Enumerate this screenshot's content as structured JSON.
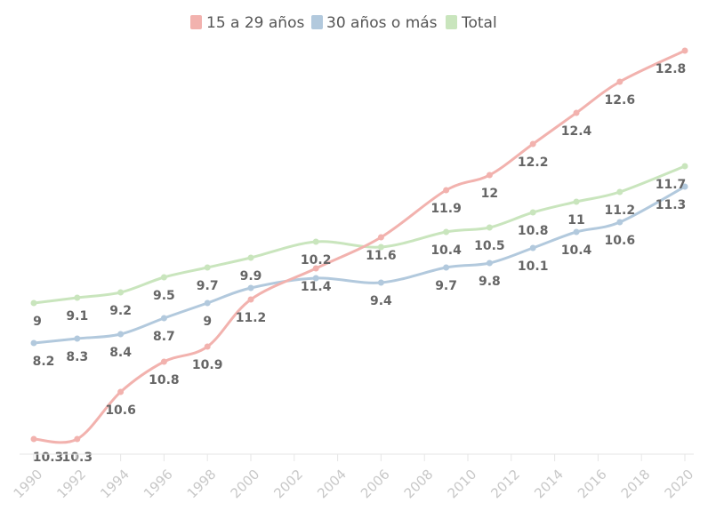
{
  "chart_data": {
    "type": "line",
    "title": "",
    "xlabel": "",
    "ylabel": "",
    "x_tick_labels": [
      "1990",
      "1992",
      "1994",
      "1996",
      "1998",
      "2000",
      "2002",
      "2004",
      "2006",
      "2008",
      "2010",
      "2012",
      "2014",
      "2016",
      "2018",
      "2020"
    ],
    "xlim": [
      1990,
      2020
    ],
    "grid": false,
    "legend_position": "top-center",
    "series": [
      {
        "name": "15 a 29 años",
        "color": "#f2b2ae",
        "x": [
          1990,
          1992,
          1994,
          1996,
          1998,
          2000,
          2003,
          2006,
          2009,
          2011,
          2013,
          2015,
          2017,
          2020
        ],
        "values": [
          10.3,
          10.3,
          10.6,
          10.8,
          10.9,
          11.2,
          11.4,
          11.6,
          11.9,
          12,
          12.2,
          12.4,
          12.6,
          12.8
        ]
      },
      {
        "name": "30 años o más",
        "color": "#b2c9dd",
        "x": [
          1990,
          1992,
          1994,
          1996,
          1998,
          2000,
          2003,
          2006,
          2009,
          2011,
          2013,
          2015,
          2017,
          2020
        ],
        "values": [
          8.2,
          8.3,
          8.4,
          8.7,
          9,
          9.3,
          9.4,
          9.4,
          9.7,
          9.8,
          10.1,
          10.4,
          10.6,
          11.3
        ]
      },
      {
        "name": "Total",
        "color": "#c9e5bd",
        "x": [
          1990,
          1992,
          1994,
          1996,
          1998,
          2000,
          2003,
          2006,
          2009,
          2011,
          2013,
          2015,
          2017,
          2020
        ],
        "values": [
          9,
          9.1,
          9.2,
          9.5,
          9.7,
          9.9,
          10.2,
          10,
          10.4,
          10.5,
          10.8,
          11,
          11.2,
          11.7
        ]
      }
    ],
    "point_labels": [
      {
        "series": 0,
        "index": 0,
        "text": "10.3"
      },
      {
        "series": 0,
        "index": 1,
        "text": "10.3"
      },
      {
        "series": 0,
        "index": 2,
        "text": "10.6"
      },
      {
        "series": 0,
        "index": 3,
        "text": "10.8"
      },
      {
        "series": 0,
        "index": 4,
        "text": "10.9"
      },
      {
        "series": 0,
        "index": 5,
        "text": "11.2"
      },
      {
        "series": 0,
        "index": 6,
        "text": "11.4"
      },
      {
        "series": 0,
        "index": 7,
        "text": "11.6"
      },
      {
        "series": 0,
        "index": 8,
        "text": "11.9"
      },
      {
        "series": 0,
        "index": 9,
        "text": "12"
      },
      {
        "series": 0,
        "index": 10,
        "text": "12.2"
      },
      {
        "series": 0,
        "index": 11,
        "text": "12.4"
      },
      {
        "series": 0,
        "index": 12,
        "text": "12.6"
      },
      {
        "series": 0,
        "index": 13,
        "text": "12.8"
      },
      {
        "series": 1,
        "index": 0,
        "text": "8.2"
      },
      {
        "series": 1,
        "index": 1,
        "text": "8.3"
      },
      {
        "series": 1,
        "index": 2,
        "text": "8.4"
      },
      {
        "series": 1,
        "index": 3,
        "text": "8.7"
      },
      {
        "series": 1,
        "index": 4,
        "text": "9"
      },
      {
        "series": 1,
        "index": 7,
        "text": "9.4"
      },
      {
        "series": 1,
        "index": 8,
        "text": "9.7"
      },
      {
        "series": 1,
        "index": 9,
        "text": "9.8"
      },
      {
        "series": 1,
        "index": 10,
        "text": "10.1"
      },
      {
        "series": 1,
        "index": 11,
        "text": "10.4"
      },
      {
        "series": 1,
        "index": 12,
        "text": "10.6"
      },
      {
        "series": 1,
        "index": 13,
        "text": "11.3"
      },
      {
        "series": 2,
        "index": 0,
        "text": "9"
      },
      {
        "series": 2,
        "index": 1,
        "text": "9.1"
      },
      {
        "series": 2,
        "index": 2,
        "text": "9.2"
      },
      {
        "series": 2,
        "index": 3,
        "text": "9.5"
      },
      {
        "series": 2,
        "index": 4,
        "text": "9.7"
      },
      {
        "series": 2,
        "index": 5,
        "text": "9.9"
      },
      {
        "series": 2,
        "index": 6,
        "text": "10.2"
      },
      {
        "series": 2,
        "index": 8,
        "text": "10.4"
      },
      {
        "series": 2,
        "index": 9,
        "text": "10.5"
      },
      {
        "series": 2,
        "index": 10,
        "text": "10.8"
      },
      {
        "series": 2,
        "index": 11,
        "text": "11"
      },
      {
        "series": 2,
        "index": 12,
        "text": "11.2"
      },
      {
        "series": 2,
        "index": 13,
        "text": "11.7"
      }
    ]
  }
}
